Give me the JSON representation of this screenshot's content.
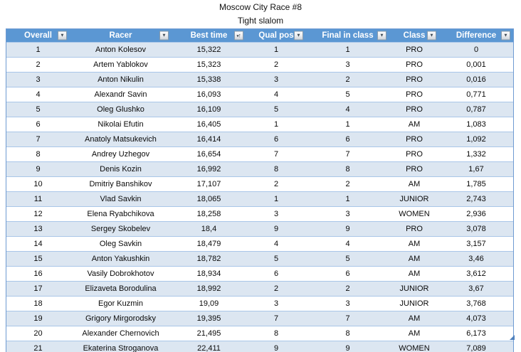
{
  "title": "Moscow City Race #8",
  "subtitle": "Tight slalom",
  "colors": {
    "header_fill": "#5b97d3",
    "band_fill": "#dce6f1",
    "row_border": "#a9c6e8",
    "outer_border": "#6f9bd2",
    "resize_handle": "#4f81bd"
  },
  "table": {
    "columns": [
      {
        "label": "Overall",
        "slug": "overall",
        "sort": "none",
        "icon": "filter-dropdown-icon"
      },
      {
        "label": "Racer",
        "slug": "racer",
        "sort": "none",
        "icon": "filter-dropdown-icon"
      },
      {
        "label": "Best time",
        "slug": "best-time",
        "sort": "asc",
        "icon": "filter-sort-ascending-icon"
      },
      {
        "label": "Qual pos",
        "slug": "qual-pos",
        "sort": "none",
        "icon": "filter-dropdown-icon"
      },
      {
        "label": "Final in class",
        "slug": "final-in-class",
        "sort": "none",
        "icon": "filter-dropdown-icon"
      },
      {
        "label": "Class",
        "slug": "class",
        "sort": "none",
        "icon": "filter-dropdown-icon"
      },
      {
        "label": "Difference",
        "slug": "difference",
        "sort": "none",
        "icon": "filter-dropdown-icon"
      }
    ],
    "rows": [
      [
        "1",
        "Anton Kolesov",
        "15,322",
        "1",
        "1",
        "PRO",
        "0"
      ],
      [
        "2",
        "Artem Yablokov",
        "15,323",
        "2",
        "3",
        "PRO",
        "0,001"
      ],
      [
        "3",
        "Anton Nikulin",
        "15,338",
        "3",
        "2",
        "PRO",
        "0,016"
      ],
      [
        "4",
        "Alexandr Savin",
        "16,093",
        "4",
        "5",
        "PRO",
        "0,771"
      ],
      [
        "5",
        "Oleg Glushko",
        "16,109",
        "5",
        "4",
        "PRO",
        "0,787"
      ],
      [
        "6",
        "Nikolai Efutin",
        "16,405",
        "1",
        "1",
        "AM",
        "1,083"
      ],
      [
        "7",
        "Anatoly Matsukevich",
        "16,414",
        "6",
        "6",
        "PRO",
        "1,092"
      ],
      [
        "8",
        "Andrey Uzhegov",
        "16,654",
        "7",
        "7",
        "PRO",
        "1,332"
      ],
      [
        "9",
        "Denis Kozin",
        "16,992",
        "8",
        "8",
        "PRO",
        "1,67"
      ],
      [
        "10",
        "Dmitriy Banshikov",
        "17,107",
        "2",
        "2",
        "AM",
        "1,785"
      ],
      [
        "11",
        "Vlad Savkin",
        "18,065",
        "1",
        "1",
        "JUNIOR",
        "2,743"
      ],
      [
        "12",
        "Elena Ryabchikova",
        "18,258",
        "3",
        "3",
        "WOMEN",
        "2,936"
      ],
      [
        "13",
        "Sergey Skobelev",
        "18,4",
        "9",
        "9",
        "PRO",
        "3,078"
      ],
      [
        "14",
        "Oleg Savkin",
        "18,479",
        "4",
        "4",
        "AM",
        "3,157"
      ],
      [
        "15",
        "Anton Yakushkin",
        "18,782",
        "5",
        "5",
        "AM",
        "3,46"
      ],
      [
        "16",
        "Vasily Dobrokhotov",
        "18,934",
        "6",
        "6",
        "AM",
        "3,612"
      ],
      [
        "17",
        "Elizaveta Borodulina",
        "18,992",
        "2",
        "2",
        "JUNIOR",
        "3,67"
      ],
      [
        "18",
        "Egor Kuzmin",
        "19,09",
        "3",
        "3",
        "JUNIOR",
        "3,768"
      ],
      [
        "19",
        "Grigory Mirgorodsky",
        "19,395",
        "7",
        "7",
        "AM",
        "4,073"
      ],
      [
        "20",
        "Alexander Chernovich",
        "21,495",
        "8",
        "8",
        "AM",
        "6,173"
      ],
      [
        "21",
        "Ekaterina Stroganova",
        "22,411",
        "9",
        "9",
        "WOMEN",
        "7,089"
      ]
    ]
  }
}
